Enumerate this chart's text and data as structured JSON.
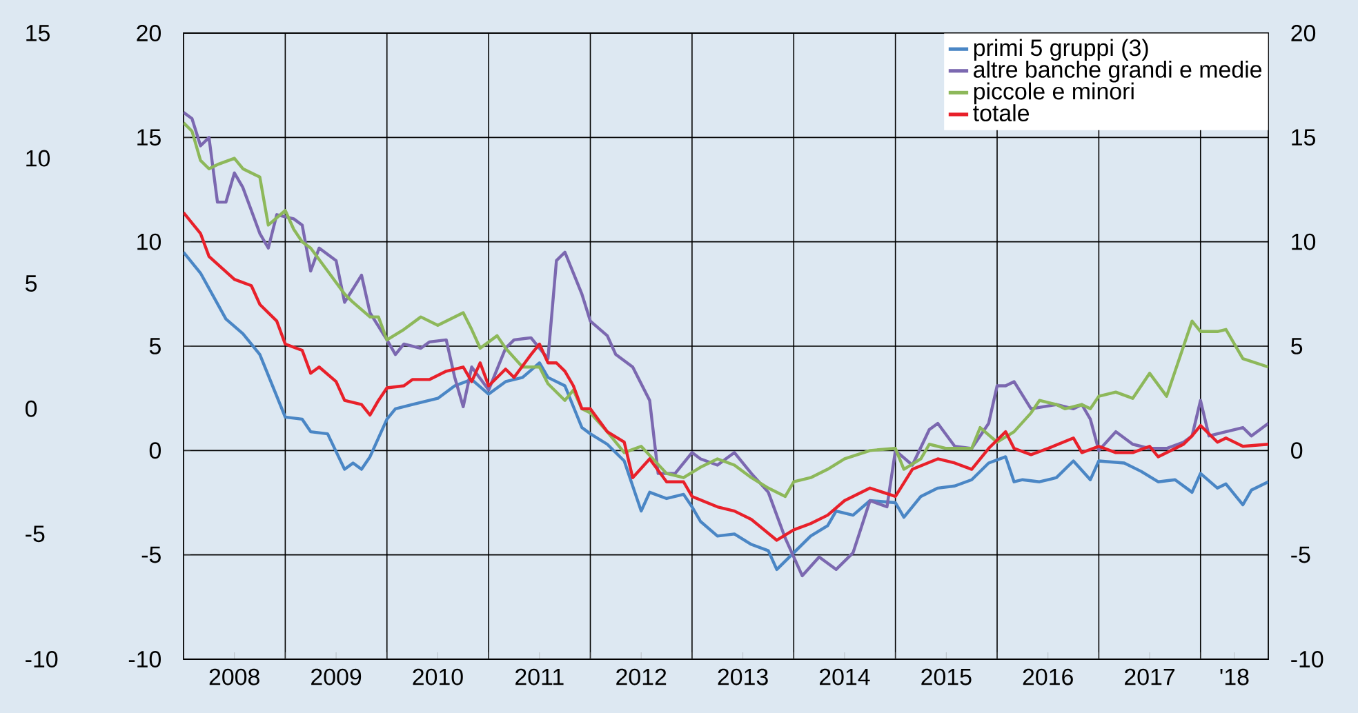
{
  "chart_data": {
    "type": "line",
    "xlim": [
      "2008-01",
      "2018-09"
    ],
    "xticks": [
      {
        "value": "2008-07",
        "label": "2008"
      },
      {
        "value": "2009-07",
        "label": "2009"
      },
      {
        "value": "2010-07",
        "label": "2010"
      },
      {
        "value": "2011-07",
        "label": "2011"
      },
      {
        "value": "2012-07",
        "label": "2012"
      },
      {
        "value": "2013-07",
        "label": "2013"
      },
      {
        "value": "2014-07",
        "label": "2014"
      },
      {
        "value": "2015-07",
        "label": "2015"
      },
      {
        "value": "2016-07",
        "label": "2016"
      },
      {
        "value": "2017-07",
        "label": "2017"
      },
      {
        "value": "2018-05",
        "label": "'18"
      },
      {
        "value": "2009-01",
        "label": null
      },
      {
        "value": "2010-01",
        "label": null
      },
      {
        "value": "2011-01",
        "label": null
      },
      {
        "value": "2012-01",
        "label": null
      },
      {
        "value": "2013-01",
        "label": null
      },
      {
        "value": "2014-01",
        "label": null
      },
      {
        "value": "2015-01",
        "label": null
      },
      {
        "value": "2016-01",
        "label": null
      },
      {
        "value": "2017-01",
        "label": null
      },
      {
        "value": "2018-01",
        "label": null
      }
    ],
    "ylim": [
      -10,
      20
    ],
    "yticks": [
      -10,
      -5,
      0,
      5,
      10,
      15,
      20
    ],
    "y2lim": [
      -10,
      20
    ],
    "y2ticks": [
      -10,
      -5,
      0,
      5,
      10,
      15,
      20
    ],
    "y3lim": [
      -10,
      15
    ],
    "y3ticks": [
      -10,
      -5,
      0,
      5,
      10,
      15
    ],
    "grid": true,
    "legend": "top right",
    "series": [
      {
        "name": "primi 5 gruppi (3)",
        "color": "#4a86c5",
        "x": [
          "2008-01",
          "2008-03",
          "2008-06",
          "2008-08",
          "2008-10",
          "2008-12",
          "2009-01",
          "2009-03",
          "2009-04",
          "2009-06",
          "2009-08",
          "2009-09",
          "2009-10",
          "2009-11",
          "2010-01",
          "2010-02",
          "2010-04",
          "2010-07",
          "2010-09",
          "2010-11",
          "2011-01",
          "2011-03",
          "2011-05",
          "2011-07",
          "2011-08",
          "2011-10",
          "2011-12",
          "2012-01",
          "2012-03",
          "2012-05",
          "2012-07",
          "2012-08",
          "2012-10",
          "2012-12",
          "2013-01",
          "2013-02",
          "2013-04",
          "2013-06",
          "2013-08",
          "2013-10",
          "2013-11",
          "2014-01",
          "2014-03",
          "2014-05",
          "2014-06",
          "2014-08",
          "2014-10",
          "2015-01",
          "2015-02",
          "2015-04",
          "2015-06",
          "2015-08",
          "2015-10",
          "2015-12",
          "2016-02",
          "2016-03",
          "2016-04",
          "2016-06",
          "2016-08",
          "2016-10",
          "2016-12",
          "2017-01",
          "2017-04",
          "2017-06",
          "2017-08",
          "2017-10",
          "2017-12",
          "2018-01",
          "2018-03",
          "2018-04",
          "2018-06",
          "2018-07",
          "2018-09"
        ],
        "values": [
          9.5,
          8.5,
          6.3,
          5.6,
          4.6,
          2.6,
          1.6,
          1.5,
          0.9,
          0.8,
          -0.9,
          -0.6,
          -0.9,
          -0.3,
          1.5,
          2.0,
          2.2,
          2.5,
          3.1,
          3.4,
          2.7,
          3.3,
          3.5,
          4.2,
          3.5,
          3.1,
          1.1,
          0.8,
          0.3,
          -0.5,
          -2.9,
          -2.0,
          -2.3,
          -2.1,
          -2.7,
          -3.4,
          -4.1,
          -4.0,
          -4.5,
          -4.8,
          -5.7,
          -4.9,
          -4.1,
          -3.6,
          -2.9,
          -3.1,
          -2.4,
          -2.5,
          -3.2,
          -2.2,
          -1.8,
          -1.7,
          -1.4,
          -0.6,
          -0.3,
          -1.5,
          -1.4,
          -1.5,
          -1.3,
          -0.5,
          -1.4,
          -0.5,
          -0.6,
          -1.0,
          -1.5,
          -1.4,
          -2.0,
          -1.1,
          -1.8,
          -1.6,
          -2.6,
          -1.9,
          -1.5
        ]
      },
      {
        "name": "altre banche grandi e medie",
        "color": "#7b68b0",
        "x": [
          "2008-01",
          "2008-02",
          "2008-03",
          "2008-04",
          "2008-05",
          "2008-06",
          "2008-07",
          "2008-08",
          "2008-10",
          "2008-11",
          "2008-12",
          "2009-02",
          "2009-03",
          "2009-04",
          "2009-05",
          "2009-07",
          "2009-08",
          "2009-10",
          "2009-11",
          "2010-01",
          "2010-02",
          "2010-03",
          "2010-05",
          "2010-06",
          "2010-08",
          "2010-09",
          "2010-10",
          "2010-11",
          "2011-01",
          "2011-03",
          "2011-04",
          "2011-06",
          "2011-08",
          "2011-09",
          "2011-10",
          "2011-12",
          "2012-01",
          "2012-03",
          "2012-04",
          "2012-06",
          "2012-08",
          "2012-09",
          "2012-11",
          "2013-01",
          "2013-02",
          "2013-04",
          "2013-06",
          "2013-08",
          "2013-10",
          "2013-12",
          "2014-02",
          "2014-04",
          "2014-06",
          "2014-08",
          "2014-10",
          "2014-12",
          "2015-01",
          "2015-03",
          "2015-05",
          "2015-06",
          "2015-08",
          "2015-10",
          "2015-12",
          "2016-01",
          "2016-02",
          "2016-03",
          "2016-05",
          "2016-08",
          "2016-10",
          "2016-11",
          "2016-12",
          "2017-01",
          "2017-03",
          "2017-05",
          "2017-07",
          "2017-09",
          "2017-11",
          "2017-12",
          "2018-01",
          "2018-02",
          "2018-04",
          "2018-06",
          "2018-07",
          "2018-09"
        ],
        "values": [
          16.2,
          15.9,
          14.6,
          15.0,
          11.9,
          11.9,
          13.3,
          12.6,
          10.4,
          9.7,
          11.3,
          11.1,
          10.8,
          8.6,
          9.7,
          9.1,
          7.1,
          8.4,
          6.6,
          5.3,
          4.6,
          5.1,
          4.9,
          5.2,
          5.3,
          3.5,
          2.1,
          4.0,
          2.9,
          4.9,
          5.3,
          5.4,
          4.4,
          9.1,
          9.5,
          7.5,
          6.2,
          5.5,
          4.6,
          4.0,
          2.4,
          -1.1,
          -1.1,
          -0.1,
          -0.4,
          -0.7,
          -0.1,
          -1.1,
          -2.0,
          -4.2,
          -6.0,
          -5.1,
          -5.7,
          -4.9,
          -2.4,
          -2.7,
          0.0,
          -0.7,
          1.0,
          1.3,
          0.2,
          0.1,
          1.3,
          3.1,
          3.1,
          3.3,
          2.0,
          2.2,
          2.0,
          2.2,
          1.5,
          0.0,
          0.9,
          0.3,
          0.1,
          0.1,
          0.4,
          0.7,
          2.4,
          0.7,
          0.9,
          1.1,
          0.7,
          1.3
        ]
      },
      {
        "name": "piccole e minori",
        "color": "#8db85a",
        "x": [
          "2008-01",
          "2008-02",
          "2008-03",
          "2008-04",
          "2008-05",
          "2008-07",
          "2008-08",
          "2008-10",
          "2008-11",
          "2009-01",
          "2009-02",
          "2009-03",
          "2009-04",
          "2009-06",
          "2009-08",
          "2009-09",
          "2009-11",
          "2009-12",
          "2010-01",
          "2010-03",
          "2010-05",
          "2010-07",
          "2010-08",
          "2010-10",
          "2010-11",
          "2010-12",
          "2011-02",
          "2011-03",
          "2011-05",
          "2011-07",
          "2011-08",
          "2011-10",
          "2011-11",
          "2011-12",
          "2012-01",
          "2012-03",
          "2012-05",
          "2012-07",
          "2012-10",
          "2012-12",
          "2013-02",
          "2013-04",
          "2013-06",
          "2013-08",
          "2013-10",
          "2013-12",
          "2014-01",
          "2014-03",
          "2014-05",
          "2014-07",
          "2014-10",
          "2015-01",
          "2015-02",
          "2015-04",
          "2015-05",
          "2015-07",
          "2015-10",
          "2015-11",
          "2016-01",
          "2016-03",
          "2016-05",
          "2016-06",
          "2016-08",
          "2016-09",
          "2016-11",
          "2016-12",
          "2017-01",
          "2017-03",
          "2017-05",
          "2017-07",
          "2017-09",
          "2017-12",
          "2018-01",
          "2018-03",
          "2018-04",
          "2018-06",
          "2018-09"
        ],
        "values": [
          15.7,
          15.3,
          13.9,
          13.5,
          13.7,
          14.0,
          13.5,
          13.1,
          10.8,
          11.5,
          10.6,
          10.0,
          9.7,
          8.6,
          7.5,
          7.1,
          6.4,
          6.4,
          5.3,
          5.8,
          6.4,
          6.0,
          6.2,
          6.6,
          5.8,
          4.9,
          5.5,
          4.9,
          4.0,
          4.0,
          3.2,
          2.4,
          2.9,
          2.0,
          1.8,
          0.9,
          -0.1,
          0.2,
          -1.1,
          -1.3,
          -0.8,
          -0.4,
          -0.7,
          -1.3,
          -1.8,
          -2.2,
          -1.5,
          -1.3,
          -0.9,
          -0.4,
          0.0,
          0.1,
          -0.9,
          -0.4,
          0.3,
          0.1,
          0.1,
          1.1,
          0.4,
          0.9,
          1.8,
          2.4,
          2.2,
          2.0,
          2.2,
          2.0,
          2.6,
          2.8,
          2.5,
          3.7,
          2.6,
          6.2,
          5.7,
          5.7,
          5.8,
          4.4,
          4.0
        ]
      },
      {
        "name": "totale",
        "color": "#e8202a",
        "x": [
          "2008-01",
          "2008-03",
          "2008-04",
          "2008-07",
          "2008-09",
          "2008-10",
          "2008-12",
          "2009-01",
          "2009-03",
          "2009-04",
          "2009-05",
          "2009-07",
          "2009-08",
          "2009-10",
          "2009-11",
          "2009-12",
          "2010-01",
          "2010-03",
          "2010-04",
          "2010-06",
          "2010-08",
          "2010-10",
          "2010-11",
          "2010-12",
          "2011-01",
          "2011-03",
          "2011-04",
          "2011-06",
          "2011-07",
          "2011-08",
          "2011-09",
          "2011-10",
          "2011-11",
          "2011-12",
          "2012-01",
          "2012-03",
          "2012-05",
          "2012-06",
          "2012-08",
          "2012-10",
          "2012-12",
          "2013-01",
          "2013-04",
          "2013-06",
          "2013-08",
          "2013-11",
          "2014-01",
          "2014-03",
          "2014-05",
          "2014-07",
          "2014-10",
          "2015-01",
          "2015-03",
          "2015-06",
          "2015-08",
          "2015-10",
          "2015-12",
          "2016-02",
          "2016-03",
          "2016-05",
          "2016-07",
          "2016-10",
          "2016-11",
          "2017-01",
          "2017-03",
          "2017-05",
          "2017-07",
          "2017-08",
          "2017-11",
          "2017-12",
          "2018-01",
          "2018-03",
          "2018-04",
          "2018-06",
          "2018-09"
        ],
        "values": [
          11.4,
          10.4,
          9.3,
          8.2,
          7.9,
          7.0,
          6.2,
          5.1,
          4.8,
          3.7,
          4.0,
          3.3,
          2.4,
          2.2,
          1.7,
          2.4,
          3.0,
          3.1,
          3.4,
          3.4,
          3.8,
          4.0,
          3.3,
          4.2,
          3.1,
          3.9,
          3.5,
          4.6,
          5.1,
          4.2,
          4.2,
          3.8,
          3.1,
          2.0,
          2.0,
          0.9,
          0.4,
          -1.3,
          -0.4,
          -1.5,
          -1.5,
          -2.2,
          -2.7,
          -2.9,
          -3.3,
          -4.3,
          -3.8,
          -3.5,
          -3.1,
          -2.4,
          -1.8,
          -2.2,
          -0.9,
          -0.4,
          -0.6,
          -0.9,
          0.1,
          0.9,
          0.1,
          -0.2,
          0.1,
          0.6,
          -0.1,
          0.2,
          -0.1,
          -0.1,
          0.2,
          -0.3,
          0.3,
          0.7,
          1.2,
          0.4,
          0.6,
          0.2,
          0.3
        ]
      }
    ]
  }
}
